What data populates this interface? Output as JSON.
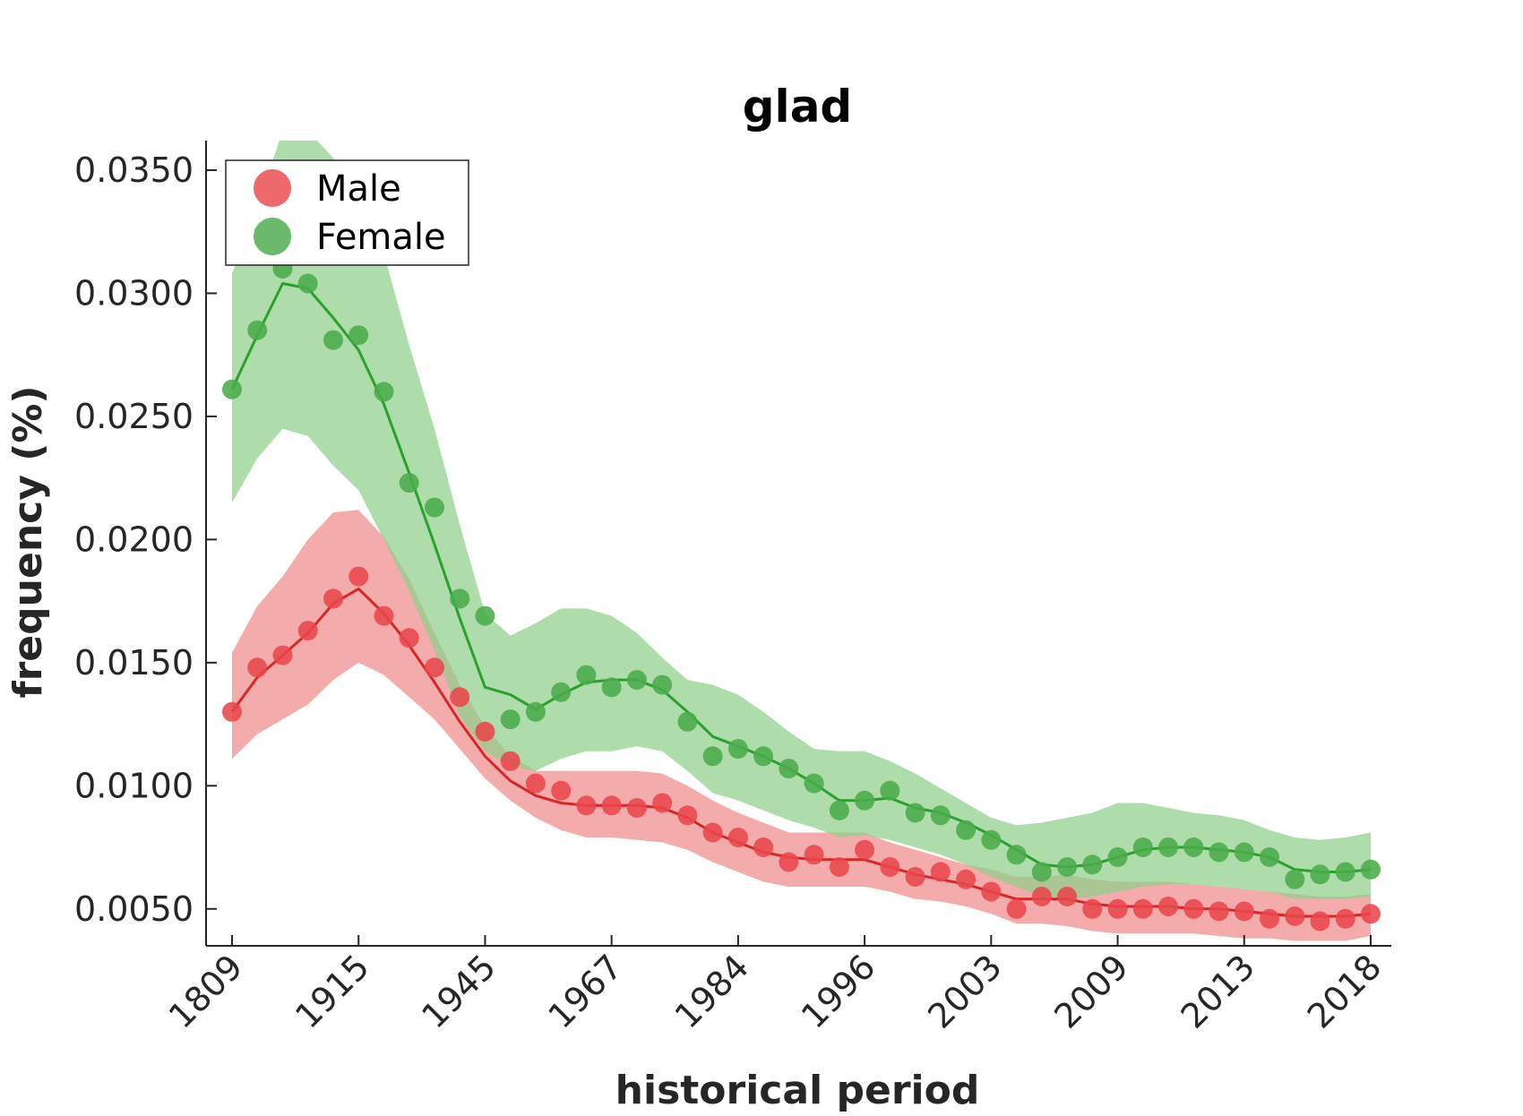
{
  "chart_data": {
    "type": "line",
    "title": "glad",
    "xlabel": "historical period",
    "ylabel": "frequency (%)",
    "ylim": [
      0.0035,
      0.0362
    ],
    "yticks": [
      "0.0050",
      "0.0100",
      "0.0150",
      "0.0200",
      "0.0250",
      "0.0300",
      "0.0350"
    ],
    "xtick_labels": [
      "1809",
      "1915",
      "1945",
      "1967",
      "1984",
      "1996",
      "2003",
      "2009",
      "2013",
      "2018"
    ],
    "n_points": 46,
    "grid": false,
    "legend_position": "top-left",
    "series": [
      {
        "name": "Male",
        "color": "#d62728",
        "marker_color": "#e8474b",
        "band_color": "#f08a8c",
        "points": [
          0.013,
          0.0148,
          0.0153,
          0.0163,
          0.0176,
          0.0185,
          0.0169,
          0.016,
          0.0148,
          0.0136,
          0.0122,
          0.011,
          0.0101,
          0.0098,
          0.0092,
          0.0092,
          0.0091,
          0.0093,
          0.0088,
          0.0081,
          0.0079,
          0.0075,
          0.0069,
          0.0072,
          0.0067,
          0.0074,
          0.0067,
          0.0063,
          0.0065,
          0.0062,
          0.0057,
          0.005,
          0.0055,
          0.0055,
          0.005,
          0.005,
          0.005,
          0.0051,
          0.005,
          0.0049,
          0.0049,
          0.0046,
          0.0047,
          0.0045,
          0.0046,
          0.0048
        ],
        "fit": [
          0.013,
          0.0144,
          0.0153,
          0.0162,
          0.0174,
          0.018,
          0.017,
          0.0157,
          0.0142,
          0.0126,
          0.0112,
          0.0102,
          0.0096,
          0.0093,
          0.0092,
          0.0092,
          0.0092,
          0.0091,
          0.0087,
          0.0081,
          0.0077,
          0.0073,
          0.0071,
          0.007,
          0.007,
          0.007,
          0.0067,
          0.0064,
          0.0062,
          0.006,
          0.0057,
          0.0054,
          0.0054,
          0.0054,
          0.0052,
          0.0051,
          0.0051,
          0.0051,
          0.005,
          0.005,
          0.0049,
          0.0048,
          0.0047,
          0.0047,
          0.0047,
          0.0048
        ],
        "lower": [
          0.0111,
          0.0121,
          0.0127,
          0.0133,
          0.0143,
          0.015,
          0.0145,
          0.0136,
          0.0127,
          0.0115,
          0.0103,
          0.0094,
          0.0087,
          0.0082,
          0.0079,
          0.0079,
          0.0078,
          0.0077,
          0.0074,
          0.0069,
          0.0065,
          0.0061,
          0.0059,
          0.0059,
          0.0059,
          0.0059,
          0.0057,
          0.0054,
          0.0053,
          0.0051,
          0.0048,
          0.0044,
          0.0044,
          0.0043,
          0.0041,
          0.004,
          0.004,
          0.004,
          0.004,
          0.0039,
          0.0038,
          0.0038,
          0.0037,
          0.0037,
          0.0037,
          0.0039
        ],
        "upper": [
          0.0154,
          0.0173,
          0.0185,
          0.02,
          0.0211,
          0.0212,
          0.0201,
          0.0184,
          0.0162,
          0.0141,
          0.0124,
          0.0112,
          0.0106,
          0.0106,
          0.0106,
          0.0106,
          0.0106,
          0.0105,
          0.01,
          0.0094,
          0.0089,
          0.0085,
          0.0081,
          0.0081,
          0.0081,
          0.0081,
          0.0077,
          0.0074,
          0.0071,
          0.0068,
          0.0066,
          0.0063,
          0.0063,
          0.0064,
          0.0062,
          0.0061,
          0.0061,
          0.0061,
          0.006,
          0.0059,
          0.0058,
          0.0057,
          0.0056,
          0.0055,
          0.0055,
          0.0056
        ]
      },
      {
        "name": "Female",
        "color": "#2ca02c",
        "marker_color": "#4bab4b",
        "band_color": "#8fcf8a",
        "points": [
          0.0261,
          0.0285,
          0.031,
          0.0304,
          0.0281,
          0.0283,
          0.026,
          0.0223,
          0.0213,
          0.0176,
          0.0169,
          0.0127,
          0.013,
          0.0138,
          0.0145,
          0.014,
          0.0143,
          0.0141,
          0.0126,
          0.0112,
          0.0115,
          0.0112,
          0.0107,
          0.0101,
          0.009,
          0.0094,
          0.0098,
          0.0089,
          0.0088,
          0.0082,
          0.0078,
          0.0072,
          0.0065,
          0.0067,
          0.0068,
          0.0071,
          0.0075,
          0.0075,
          0.0075,
          0.0073,
          0.0073,
          0.0071,
          0.0062,
          0.0064,
          0.0065,
          0.0066
        ],
        "fit": [
          0.0261,
          0.0283,
          0.0304,
          0.0302,
          0.029,
          0.0277,
          0.0255,
          0.0227,
          0.0198,
          0.0168,
          0.014,
          0.0137,
          0.0131,
          0.0137,
          0.0142,
          0.0143,
          0.0143,
          0.0139,
          0.013,
          0.012,
          0.0116,
          0.0112,
          0.0107,
          0.0101,
          0.0094,
          0.0094,
          0.0095,
          0.0091,
          0.0089,
          0.0085,
          0.008,
          0.0074,
          0.0068,
          0.0067,
          0.0068,
          0.0071,
          0.0074,
          0.0075,
          0.0075,
          0.0074,
          0.0073,
          0.0071,
          0.0066,
          0.0065,
          0.0065,
          0.0066
        ],
        "lower": [
          0.0215,
          0.0233,
          0.0245,
          0.0242,
          0.023,
          0.022,
          0.02,
          0.0179,
          0.0155,
          0.0128,
          0.0114,
          0.0108,
          0.0106,
          0.0111,
          0.0114,
          0.0114,
          0.0116,
          0.0114,
          0.0106,
          0.0097,
          0.0094,
          0.009,
          0.0086,
          0.0083,
          0.0079,
          0.008,
          0.0078,
          0.0075,
          0.0072,
          0.0068,
          0.0063,
          0.0059,
          0.0055,
          0.0054,
          0.0055,
          0.0057,
          0.0059,
          0.006,
          0.006,
          0.0059,
          0.0058,
          0.0057,
          0.0054,
          0.0054,
          0.0054,
          0.0055
        ],
        "upper": [
          0.0308,
          0.0335,
          0.0366,
          0.0366,
          0.0355,
          0.0342,
          0.0316,
          0.0279,
          0.0245,
          0.0206,
          0.017,
          0.0161,
          0.0166,
          0.0172,
          0.0172,
          0.0169,
          0.0162,
          0.0152,
          0.0143,
          0.0141,
          0.0137,
          0.013,
          0.0122,
          0.0115,
          0.0114,
          0.0114,
          0.011,
          0.0105,
          0.0099,
          0.0093,
          0.0087,
          0.0084,
          0.0085,
          0.0087,
          0.0089,
          0.0093,
          0.0093,
          0.0091,
          0.0089,
          0.0088,
          0.0086,
          0.0082,
          0.0079,
          0.0078,
          0.0079,
          0.0081
        ]
      }
    ]
  }
}
